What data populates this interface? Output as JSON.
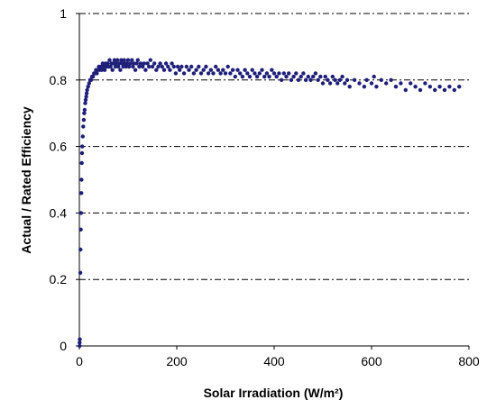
{
  "chart_data": {
    "type": "scatter",
    "title": "",
    "xlabel": "Solar Irradiation (W/m²)",
    "ylabel": "Actual / Rated Efficiency",
    "xlim": [
      0,
      800
    ],
    "ylim": [
      0,
      1
    ],
    "x_ticks": [
      "0",
      "200",
      "400",
      "600",
      "800"
    ],
    "y_ticks": [
      "0",
      "0.2",
      "0.4",
      "0.6",
      "0.8",
      "1"
    ],
    "grid": "horizontal dash-dot",
    "legend": "none",
    "marker_color": "#1f1f7a",
    "series": [
      {
        "points": [
          [
            0.5,
            0.0
          ],
          [
            0.5,
            0.01
          ],
          [
            1,
            0.02
          ],
          [
            2,
            0.22
          ],
          [
            2.5,
            0.29
          ],
          [
            3,
            0.35
          ],
          [
            3.5,
            0.4
          ],
          [
            4,
            0.46
          ],
          [
            4.5,
            0.5
          ],
          [
            5,
            0.55
          ],
          [
            5.5,
            0.58
          ],
          [
            6,
            0.6
          ],
          [
            7,
            0.63
          ],
          [
            8,
            0.66
          ],
          [
            9,
            0.68
          ],
          [
            10,
            0.7
          ],
          [
            11,
            0.71
          ],
          [
            12,
            0.73
          ],
          [
            13,
            0.74
          ],
          [
            14,
            0.75
          ],
          [
            15,
            0.76
          ],
          [
            16,
            0.77
          ],
          [
            18,
            0.78
          ],
          [
            20,
            0.79
          ],
          [
            22,
            0.8
          ],
          [
            24,
            0.8
          ],
          [
            26,
            0.81
          ],
          [
            28,
            0.81
          ],
          [
            30,
            0.82
          ],
          [
            32,
            0.82
          ],
          [
            34,
            0.83
          ],
          [
            36,
            0.82
          ],
          [
            38,
            0.83
          ],
          [
            40,
            0.84
          ],
          [
            42,
            0.83
          ],
          [
            44,
            0.84
          ],
          [
            46,
            0.83
          ],
          [
            48,
            0.85
          ],
          [
            50,
            0.84
          ],
          [
            52,
            0.83
          ],
          [
            54,
            0.85
          ],
          [
            56,
            0.84
          ],
          [
            58,
            0.85
          ],
          [
            60,
            0.84
          ],
          [
            62,
            0.86
          ],
          [
            64,
            0.84
          ],
          [
            66,
            0.85
          ],
          [
            68,
            0.83
          ],
          [
            70,
            0.85
          ],
          [
            72,
            0.86
          ],
          [
            74,
            0.84
          ],
          [
            76,
            0.85
          ],
          [
            78,
            0.86
          ],
          [
            80,
            0.84
          ],
          [
            82,
            0.85
          ],
          [
            84,
            0.83
          ],
          [
            86,
            0.86
          ],
          [
            88,
            0.85
          ],
          [
            90,
            0.84
          ],
          [
            92,
            0.86
          ],
          [
            94,
            0.85
          ],
          [
            96,
            0.84
          ],
          [
            98,
            0.85
          ],
          [
            100,
            0.86
          ],
          [
            102,
            0.84
          ],
          [
            105,
            0.85
          ],
          [
            108,
            0.86
          ],
          [
            110,
            0.84
          ],
          [
            112,
            0.85
          ],
          [
            115,
            0.83
          ],
          [
            118,
            0.85
          ],
          [
            120,
            0.86
          ],
          [
            123,
            0.84
          ],
          [
            126,
            0.85
          ],
          [
            130,
            0.84
          ],
          [
            133,
            0.85
          ],
          [
            136,
            0.83
          ],
          [
            140,
            0.85
          ],
          [
            143,
            0.84
          ],
          [
            146,
            0.86
          ],
          [
            150,
            0.84
          ],
          [
            154,
            0.85
          ],
          [
            158,
            0.83
          ],
          [
            162,
            0.84
          ],
          [
            166,
            0.85
          ],
          [
            170,
            0.84
          ],
          [
            174,
            0.83
          ],
          [
            178,
            0.85
          ],
          [
            182,
            0.84
          ],
          [
            186,
            0.83
          ],
          [
            190,
            0.85
          ],
          [
            194,
            0.84
          ],
          [
            198,
            0.82
          ],
          [
            202,
            0.84
          ],
          [
            206,
            0.83
          ],
          [
            210,
            0.84
          ],
          [
            215,
            0.82
          ],
          [
            220,
            0.84
          ],
          [
            225,
            0.83
          ],
          [
            230,
            0.84
          ],
          [
            235,
            0.82
          ],
          [
            240,
            0.83
          ],
          [
            245,
            0.84
          ],
          [
            250,
            0.82
          ],
          [
            255,
            0.83
          ],
          [
            260,
            0.84
          ],
          [
            265,
            0.82
          ],
          [
            270,
            0.83
          ],
          [
            275,
            0.82
          ],
          [
            280,
            0.84
          ],
          [
            285,
            0.83
          ],
          [
            290,
            0.82
          ],
          [
            295,
            0.83
          ],
          [
            300,
            0.82
          ],
          [
            305,
            0.84
          ],
          [
            310,
            0.82
          ],
          [
            315,
            0.83
          ],
          [
            320,
            0.81
          ],
          [
            325,
            0.83
          ],
          [
            330,
            0.82
          ],
          [
            335,
            0.81
          ],
          [
            340,
            0.83
          ],
          [
            345,
            0.82
          ],
          [
            350,
            0.81
          ],
          [
            355,
            0.83
          ],
          [
            360,
            0.82
          ],
          [
            365,
            0.81
          ],
          [
            370,
            0.82
          ],
          [
            375,
            0.83
          ],
          [
            380,
            0.81
          ],
          [
            385,
            0.82
          ],
          [
            390,
            0.81
          ],
          [
            395,
            0.83
          ],
          [
            400,
            0.82
          ],
          [
            405,
            0.81
          ],
          [
            410,
            0.82
          ],
          [
            415,
            0.8
          ],
          [
            420,
            0.82
          ],
          [
            425,
            0.81
          ],
          [
            430,
            0.82
          ],
          [
            435,
            0.8
          ],
          [
            440,
            0.81
          ],
          [
            445,
            0.82
          ],
          [
            450,
            0.8
          ],
          [
            455,
            0.81
          ],
          [
            460,
            0.82
          ],
          [
            465,
            0.8
          ],
          [
            470,
            0.81
          ],
          [
            475,
            0.8
          ],
          [
            480,
            0.81
          ],
          [
            485,
            0.82
          ],
          [
            490,
            0.8
          ],
          [
            495,
            0.81
          ],
          [
            500,
            0.79
          ],
          [
            505,
            0.81
          ],
          [
            510,
            0.8
          ],
          [
            515,
            0.79
          ],
          [
            520,
            0.81
          ],
          [
            525,
            0.8
          ],
          [
            530,
            0.79
          ],
          [
            535,
            0.8
          ],
          [
            540,
            0.81
          ],
          [
            545,
            0.79
          ],
          [
            550,
            0.8
          ],
          [
            555,
            0.78
          ],
          [
            565,
            0.8
          ],
          [
            575,
            0.79
          ],
          [
            585,
            0.78
          ],
          [
            590,
            0.8
          ],
          [
            600,
            0.79
          ],
          [
            605,
            0.81
          ],
          [
            610,
            0.78
          ],
          [
            620,
            0.8
          ],
          [
            630,
            0.79
          ],
          [
            640,
            0.8
          ],
          [
            650,
            0.78
          ],
          [
            660,
            0.79
          ],
          [
            670,
            0.77
          ],
          [
            680,
            0.79
          ],
          [
            690,
            0.78
          ],
          [
            700,
            0.77
          ],
          [
            710,
            0.79
          ],
          [
            720,
            0.78
          ],
          [
            730,
            0.77
          ],
          [
            740,
            0.78
          ],
          [
            750,
            0.77
          ],
          [
            760,
            0.78
          ],
          [
            770,
            0.77
          ],
          [
            780,
            0.78
          ]
        ]
      }
    ]
  }
}
